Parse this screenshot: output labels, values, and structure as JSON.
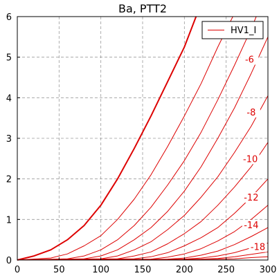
{
  "chart_data": {
    "type": "line",
    "title": "Ba, PTT2",
    "xlabel": "",
    "ylabel": "",
    "xlim": [
      0,
      300
    ],
    "ylim": [
      0,
      6
    ],
    "x_ticks": [
      "0",
      "50",
      "100",
      "150",
      "200",
      "250",
      "300"
    ],
    "y_ticks": [
      "0",
      "1",
      "2",
      "3",
      "4",
      "5",
      "6"
    ],
    "grid": true,
    "legend_position": "top-right",
    "legend": [
      "HV1_I"
    ],
    "line_color": "#dd0000",
    "series": [
      {
        "name": "HV1_I",
        "bold": true,
        "points": [
          [
            0,
            0
          ],
          [
            20,
            0.1
          ],
          [
            40,
            0.25
          ],
          [
            60,
            0.5
          ],
          [
            80,
            0.85
          ],
          [
            100,
            1.35
          ],
          [
            120,
            2.0
          ],
          [
            140,
            2.75
          ],
          [
            160,
            3.55
          ],
          [
            180,
            4.4
          ],
          [
            200,
            5.25
          ],
          [
            214,
            6.0
          ]
        ]
      },
      {
        "bold": false,
        "points": [
          [
            0,
            0
          ],
          [
            40,
            0.05
          ],
          [
            60,
            0.15
          ],
          [
            80,
            0.35
          ],
          [
            100,
            0.6
          ],
          [
            120,
            1.0
          ],
          [
            140,
            1.5
          ],
          [
            160,
            2.1
          ],
          [
            180,
            2.8
          ],
          [
            200,
            3.55
          ],
          [
            220,
            4.35
          ],
          [
            240,
            5.25
          ],
          [
            258,
            6.0
          ]
        ]
      },
      {
        "bold": false,
        "points": [
          [
            0,
            0
          ],
          [
            60,
            0.03
          ],
          [
            80,
            0.1
          ],
          [
            100,
            0.25
          ],
          [
            120,
            0.5
          ],
          [
            140,
            0.85
          ],
          [
            160,
            1.3
          ],
          [
            180,
            1.85
          ],
          [
            200,
            2.45
          ],
          [
            220,
            3.15
          ],
          [
            240,
            3.95
          ],
          [
            260,
            4.8
          ],
          [
            280,
            5.7
          ],
          [
            286,
            6.0
          ]
        ]
      },
      {
        "bold": false,
        "points": [
          [
            0,
            0
          ],
          [
            80,
            0.03
          ],
          [
            100,
            0.1
          ],
          [
            120,
            0.25
          ],
          [
            140,
            0.5
          ],
          [
            160,
            0.8
          ],
          [
            180,
            1.2
          ],
          [
            200,
            1.7
          ],
          [
            220,
            2.3
          ],
          [
            240,
            3.0
          ],
          [
            260,
            3.75
          ],
          [
            280,
            4.6
          ],
          [
            300,
            5.5
          ]
        ]
      },
      {
        "bold": false,
        "points": [
          [
            0,
            0
          ],
          [
            100,
            0.03
          ],
          [
            120,
            0.1
          ],
          [
            140,
            0.25
          ],
          [
            160,
            0.45
          ],
          [
            180,
            0.75
          ],
          [
            200,
            1.1
          ],
          [
            220,
            1.55
          ],
          [
            240,
            2.05
          ],
          [
            260,
            2.65
          ],
          [
            280,
            3.3
          ],
          [
            300,
            4.05
          ]
        ]
      },
      {
        "bold": false,
        "points": [
          [
            0,
            0
          ],
          [
            120,
            0.03
          ],
          [
            140,
            0.1
          ],
          [
            160,
            0.2
          ],
          [
            180,
            0.4
          ],
          [
            200,
            0.65
          ],
          [
            220,
            0.95
          ],
          [
            240,
            1.35
          ],
          [
            260,
            1.8
          ],
          [
            280,
            2.3
          ],
          [
            300,
            2.9
          ]
        ]
      },
      {
        "bold": false,
        "points": [
          [
            0,
            0
          ],
          [
            140,
            0.03
          ],
          [
            160,
            0.08
          ],
          [
            180,
            0.18
          ],
          [
            200,
            0.35
          ],
          [
            220,
            0.55
          ],
          [
            240,
            0.8
          ],
          [
            260,
            1.15
          ],
          [
            280,
            1.55
          ],
          [
            300,
            2.0
          ]
        ]
      },
      {
        "bold": false,
        "points": [
          [
            0,
            0
          ],
          [
            160,
            0.02
          ],
          [
            180,
            0.07
          ],
          [
            200,
            0.15
          ],
          [
            220,
            0.28
          ],
          [
            240,
            0.47
          ],
          [
            260,
            0.7
          ],
          [
            280,
            1.0
          ],
          [
            300,
            1.35
          ]
        ]
      },
      {
        "bold": false,
        "points": [
          [
            0,
            0
          ],
          [
            180,
            0.02
          ],
          [
            200,
            0.05
          ],
          [
            220,
            0.12
          ],
          [
            240,
            0.22
          ],
          [
            260,
            0.38
          ],
          [
            280,
            0.58
          ],
          [
            300,
            0.8
          ]
        ]
      },
      {
        "bold": false,
        "points": [
          [
            0,
            0
          ],
          [
            200,
            0.02
          ],
          [
            220,
            0.05
          ],
          [
            240,
            0.1
          ],
          [
            260,
            0.18
          ],
          [
            280,
            0.3
          ],
          [
            300,
            0.42
          ]
        ]
      },
      {
        "bold": false,
        "points": [
          [
            0,
            0
          ],
          [
            220,
            0.02
          ],
          [
            240,
            0.04
          ],
          [
            260,
            0.08
          ],
          [
            280,
            0.14
          ],
          [
            300,
            0.2
          ]
        ]
      },
      {
        "bold": false,
        "points": [
          [
            0,
            0
          ],
          [
            240,
            0.02
          ],
          [
            260,
            0.03
          ],
          [
            280,
            0.06
          ],
          [
            300,
            0.08
          ]
        ]
      }
    ],
    "annotations": [
      {
        "text": "-6",
        "x": 278,
        "y": 4.9
      },
      {
        "text": "-8",
        "x": 280,
        "y": 3.6
      },
      {
        "text": "-10",
        "x": 279,
        "y": 2.45
      },
      {
        "text": "-12",
        "x": 280,
        "y": 1.5
      },
      {
        "text": "-14",
        "x": 280,
        "y": 0.82
      },
      {
        "text": "-18",
        "x": 288,
        "y": 0.28
      }
    ]
  }
}
